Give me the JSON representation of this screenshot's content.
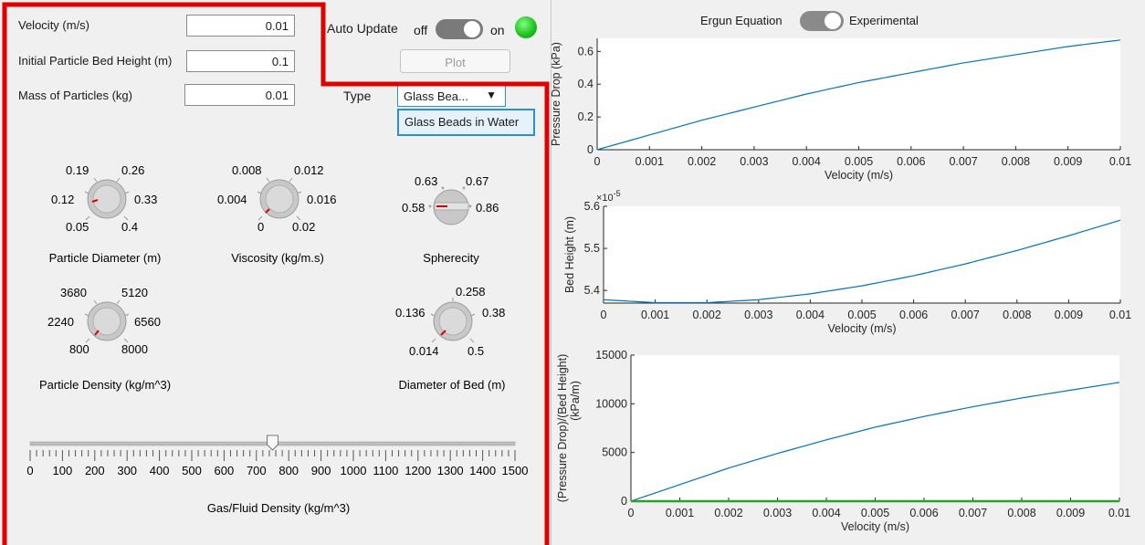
{
  "controls": {
    "velocity": {
      "label": "Velocity (m/s)",
      "value": "0.01"
    },
    "bed_height": {
      "label": "Initial Particle Bed Height (m)",
      "value": "0.1"
    },
    "mass": {
      "label": "Mass of Particles (kg)",
      "value": "0.01"
    },
    "auto_update_label": "Auto Update",
    "auto_off": "off",
    "auto_on": "on",
    "auto_update_state": "on",
    "plot_button": "Plot",
    "type_label": "Type",
    "type_selected": "Glass Bea...",
    "type_options": [
      "Glass Beads in Water"
    ],
    "dropdown_arrow": "▼"
  },
  "knobs": {
    "particle_diameter": {
      "title": "Particle Diameter (m)",
      "ticks": [
        "0.05",
        "0.12",
        "0.19",
        "0.26",
        "0.33",
        "0.4"
      ]
    },
    "viscosity": {
      "title": "Viscosity (kg/m.s)",
      "ticks": [
        "0",
        "0.004",
        "0.008",
        "0.012",
        "0.016",
        "0.02"
      ]
    },
    "sphericity": {
      "title": "Spherecity",
      "ticks": [
        "0.58",
        "0.63",
        "0.67",
        "0.86"
      ]
    },
    "particle_density": {
      "title": "Particle Density (kg/m^3)",
      "ticks": [
        "800",
        "2240",
        "3680",
        "5120",
        "6560",
        "8000"
      ]
    },
    "bed_diameter": {
      "title": "Diameter of Bed (m)",
      "ticks": [
        "0.014",
        "0.136",
        "0.258",
        "0.38",
        "0.5"
      ]
    }
  },
  "slider": {
    "title": "Gas/Fluid Density (kg/m^3)",
    "ticks": [
      "0",
      "100",
      "200",
      "300",
      "400",
      "500",
      "600",
      "700",
      "800",
      "900",
      "1000",
      "1100",
      "1200",
      "1300",
      "1400",
      "1500"
    ],
    "value": 750
  },
  "mode": {
    "left": "Ergun Equation",
    "right": "Experimental",
    "state": "Ergun Equation"
  },
  "colors": {
    "line": "#0072bd",
    "green_line": "#2ca02c",
    "highlight": "#e00000",
    "lamp": "#1dbd1d"
  },
  "chart_data": [
    {
      "type": "line",
      "xlabel": "Velocity (m/s)",
      "ylabel": "Pressure Drop (kPa)",
      "xlim": [
        0,
        0.01
      ],
      "ylim": [
        0,
        0.68
      ],
      "xticks": [
        "0",
        "0.001",
        "0.002",
        "0.003",
        "0.004",
        "0.005",
        "0.006",
        "0.007",
        "0.008",
        "0.009",
        "0.01"
      ],
      "yticks": [
        "0",
        "0.2",
        "0.4",
        "0.6"
      ],
      "series": [
        {
          "x": [
            0,
            0.001,
            0.002,
            0.003,
            0.004,
            0.005,
            0.006,
            0.007,
            0.008,
            0.009,
            0.01
          ],
          "y": [
            0,
            0.09,
            0.18,
            0.26,
            0.34,
            0.41,
            0.47,
            0.53,
            0.58,
            0.63,
            0.67
          ]
        }
      ]
    },
    {
      "type": "line",
      "xlabel": "Velocity (m/s)",
      "ylabel": "Bed Height (m)",
      "exponent_label": "×10",
      "exponent_power": "-5",
      "xlim": [
        0,
        0.01
      ],
      "ylim": [
        5.37,
        5.6
      ],
      "xticks": [
        "0",
        "0.001",
        "0.002",
        "0.003",
        "0.004",
        "0.005",
        "0.006",
        "0.007",
        "0.008",
        "0.009",
        "0.01"
      ],
      "yticks": [
        "5.4",
        "5.5",
        "5.6"
      ],
      "series": [
        {
          "x": [
            0,
            0.001,
            0.002,
            0.003,
            0.004,
            0.005,
            0.006,
            0.007,
            0.008,
            0.009,
            0.01
          ],
          "y": [
            5.378,
            5.371,
            5.371,
            5.378,
            5.392,
            5.411,
            5.435,
            5.463,
            5.495,
            5.53,
            5.567
          ]
        }
      ]
    },
    {
      "type": "line",
      "xlabel": "Velocity (m/s)",
      "ylabel": "(Pressure Drop)/(Bed Height)",
      "ylabel2": "(kPa/m)",
      "xlim": [
        0,
        0.01
      ],
      "ylim": [
        0,
        15000
      ],
      "xticks": [
        "0",
        "0.001",
        "0.002",
        "0.003",
        "0.004",
        "0.005",
        "0.006",
        "0.007",
        "0.008",
        "0.009",
        "0.01"
      ],
      "yticks": [
        "0",
        "5000",
        "10000",
        "15000"
      ],
      "series": [
        {
          "x": [
            0,
            0.001,
            0.002,
            0.003,
            0.004,
            0.005,
            0.006,
            0.007,
            0.008,
            0.009,
            0.01
          ],
          "y": [
            0,
            1700,
            3400,
            4900,
            6300,
            7600,
            8700,
            9700,
            10600,
            11400,
            12200
          ]
        },
        {
          "x": [
            0,
            0.01
          ],
          "y": [
            0,
            0
          ]
        }
      ]
    }
  ]
}
